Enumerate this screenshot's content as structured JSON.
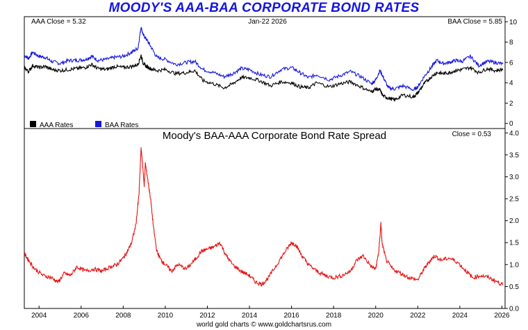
{
  "header": {
    "title": "MOODY'S AAA-BAA CORPORATE BOND RATES"
  },
  "footer": {
    "credit": "world gold charts © www.goldchartsrus.com"
  },
  "chart_data": [
    {
      "type": "line",
      "panel": "rates",
      "title": "",
      "info": {
        "aaa_close": "AAA Close = 5.32",
        "date": "Jan-22  2026",
        "baa_close": "BAA Close = 5.85"
      },
      "ylim": [
        -0.5,
        10.5
      ],
      "y_ticks": [
        "0",
        "2",
        "4",
        "6",
        "8",
        "10"
      ],
      "y_tick_values": [
        0,
        2,
        4,
        6,
        8,
        10
      ],
      "xlim": [
        2003.3,
        2026.15
      ],
      "legend_placement": "bottom-left",
      "series": [
        {
          "name": "AAA Rates",
          "color": "#000000",
          "x": [
            2003.3,
            2003.5,
            2003.7,
            2004.0,
            2004.3,
            2004.6,
            2005.0,
            2005.4,
            2005.8,
            2006.2,
            2006.5,
            2006.8,
            2007.2,
            2007.6,
            2008.0,
            2008.4,
            2008.7,
            2008.85,
            2008.95,
            2009.1,
            2009.3,
            2009.6,
            2010.0,
            2010.5,
            2011.0,
            2011.4,
            2011.8,
            2012.3,
            2012.8,
            2013.2,
            2013.6,
            2014.0,
            2014.5,
            2015.0,
            2015.5,
            2016.0,
            2016.4,
            2016.8,
            2017.2,
            2017.8,
            2018.3,
            2018.8,
            2019.3,
            2019.8,
            2020.0,
            2020.2,
            2020.35,
            2020.6,
            2020.9,
            2021.3,
            2021.8,
            2022.0,
            2022.3,
            2022.6,
            2022.9,
            2023.2,
            2023.5,
            2023.8,
            2024.1,
            2024.5,
            2024.9,
            2025.3,
            2025.7,
            2026.05
          ],
          "values": [
            5.5,
            5.1,
            5.7,
            5.5,
            5.6,
            5.3,
            5.2,
            5.3,
            5.4,
            5.5,
            5.8,
            5.4,
            5.3,
            5.6,
            5.5,
            5.6,
            5.8,
            6.7,
            5.9,
            5.6,
            5.4,
            5.2,
            5.3,
            4.9,
            5.0,
            5.2,
            4.2,
            3.9,
            3.5,
            3.9,
            4.5,
            4.5,
            4.2,
            3.7,
            4.1,
            4.0,
            3.6,
            3.5,
            4.0,
            3.6,
            3.9,
            4.1,
            3.6,
            3.1,
            3.4,
            3.3,
            2.7,
            2.5,
            2.3,
            2.8,
            2.6,
            3.0,
            3.9,
            4.5,
            5.0,
            4.9,
            5.0,
            5.2,
            5.3,
            5.5,
            5.0,
            5.4,
            5.2,
            5.32
          ]
        },
        {
          "name": "BAA Rates",
          "color": "#1515e0",
          "x": [
            2003.3,
            2003.5,
            2003.7,
            2004.0,
            2004.3,
            2004.6,
            2005.0,
            2005.4,
            2005.8,
            2006.2,
            2006.5,
            2006.8,
            2007.2,
            2007.6,
            2008.0,
            2008.4,
            2008.7,
            2008.85,
            2008.95,
            2009.1,
            2009.3,
            2009.6,
            2010.0,
            2010.5,
            2011.0,
            2011.4,
            2011.8,
            2012.3,
            2012.8,
            2013.2,
            2013.6,
            2014.0,
            2014.5,
            2015.0,
            2015.5,
            2016.0,
            2016.4,
            2016.8,
            2017.2,
            2017.8,
            2018.3,
            2018.8,
            2019.3,
            2019.8,
            2020.0,
            2020.2,
            2020.35,
            2020.6,
            2020.9,
            2021.3,
            2021.8,
            2022.0,
            2022.3,
            2022.6,
            2022.9,
            2023.2,
            2023.5,
            2023.8,
            2024.1,
            2024.5,
            2024.9,
            2025.3,
            2025.7,
            2026.05
          ],
          "values": [
            6.7,
            6.4,
            7.0,
            6.6,
            6.5,
            6.1,
            5.9,
            6.2,
            6.2,
            6.3,
            6.6,
            6.2,
            6.3,
            6.5,
            6.6,
            7.0,
            7.4,
            9.5,
            8.7,
            8.3,
            7.6,
            6.5,
            6.3,
            5.8,
            6.0,
            6.1,
            5.3,
            5.0,
            4.6,
            4.9,
            5.4,
            5.3,
            4.8,
            4.6,
            5.3,
            5.5,
            5.0,
            4.5,
            4.8,
            4.3,
            4.7,
            5.1,
            4.6,
            3.9,
            4.3,
            5.2,
            4.6,
            3.5,
            3.4,
            3.7,
            3.3,
            3.6,
            4.6,
            5.4,
            6.2,
            5.9,
            6.0,
            6.2,
            6.1,
            6.6,
            5.7,
            6.1,
            6.0,
            5.85
          ]
        }
      ]
    },
    {
      "type": "line",
      "panel": "spread",
      "title": "Moody's BAA-AAA Corporate Bond Rate Spread",
      "close_label": "Close = 0.53",
      "ylim": [
        0.0,
        4.1
      ],
      "y_ticks": [
        "0.0",
        "0.5",
        "1.0",
        "1.5",
        "2.0",
        "2.5",
        "3.0",
        "3.5",
        "4.0"
      ],
      "y_tick_values": [
        0,
        0.5,
        1.0,
        1.5,
        2.0,
        2.5,
        3.0,
        3.5,
        4.0
      ],
      "xlim": [
        2003.3,
        2026.15
      ],
      "x_ticks": [
        "2004",
        "2006",
        "2008",
        "2010",
        "2012",
        "2014",
        "2016",
        "2018",
        "2020",
        "2022",
        "2024",
        "2026"
      ],
      "x_tick_values": [
        2004,
        2006,
        2008,
        2010,
        2012,
        2014,
        2016,
        2018,
        2020,
        2022,
        2024,
        2026
      ],
      "series": [
        {
          "name": "BAA-AAA Spread",
          "color": "#e81010",
          "x": [
            2003.3,
            2003.5,
            2003.8,
            2004.2,
            2004.6,
            2004.9,
            2005.2,
            2005.5,
            2005.8,
            2006.2,
            2006.6,
            2007.0,
            2007.4,
            2007.7,
            2008.0,
            2008.2,
            2008.4,
            2008.6,
            2008.75,
            2008.85,
            2008.9,
            2009.0,
            2009.05,
            2009.15,
            2009.3,
            2009.45,
            2009.6,
            2009.8,
            2010.0,
            2010.3,
            2010.6,
            2011.0,
            2011.4,
            2011.7,
            2012.0,
            2012.3,
            2012.6,
            2012.9,
            2013.2,
            2013.6,
            2014.0,
            2014.3,
            2014.6,
            2014.9,
            2015.3,
            2015.7,
            2016.0,
            2016.2,
            2016.5,
            2016.8,
            2017.2,
            2017.6,
            2018.0,
            2018.4,
            2018.8,
            2019.1,
            2019.4,
            2019.8,
            2020.0,
            2020.15,
            2020.25,
            2020.3,
            2020.5,
            2020.8,
            2021.2,
            2021.6,
            2022.0,
            2022.3,
            2022.6,
            2022.8,
            2023.1,
            2023.5,
            2023.9,
            2024.3,
            2024.6,
            2025.0,
            2025.4,
            2025.8,
            2026.05
          ],
          "values": [
            1.25,
            1.1,
            0.9,
            0.75,
            0.7,
            0.6,
            0.8,
            0.75,
            0.95,
            0.85,
            0.9,
            0.85,
            0.95,
            1.0,
            1.15,
            1.3,
            1.5,
            1.9,
            2.6,
            3.65,
            3.4,
            2.8,
            3.3,
            3.0,
            2.5,
            1.8,
            1.3,
            1.1,
            1.0,
            0.85,
            1.0,
            0.9,
            1.1,
            1.3,
            1.35,
            1.4,
            1.5,
            1.2,
            1.0,
            0.85,
            0.75,
            0.6,
            0.55,
            0.7,
            1.0,
            1.3,
            1.5,
            1.45,
            1.2,
            1.0,
            0.85,
            0.75,
            0.7,
            0.75,
            0.85,
            1.1,
            1.2,
            0.95,
            0.9,
            1.3,
            1.95,
            1.5,
            1.1,
            0.9,
            0.8,
            0.7,
            0.65,
            0.9,
            1.1,
            1.2,
            1.1,
            1.15,
            1.05,
            0.85,
            0.7,
            0.75,
            0.7,
            0.6,
            0.53
          ]
        }
      ]
    }
  ]
}
